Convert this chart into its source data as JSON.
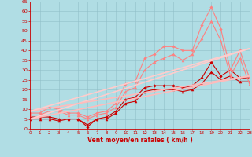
{
  "xlabel": "Vent moyen/en rafales ( km/h )",
  "xlim": [
    0,
    23
  ],
  "ylim": [
    0,
    65
  ],
  "yticks": [
    0,
    5,
    10,
    15,
    20,
    25,
    30,
    35,
    40,
    45,
    50,
    55,
    60,
    65
  ],
  "xticks": [
    0,
    1,
    2,
    3,
    4,
    5,
    6,
    7,
    8,
    9,
    10,
    11,
    12,
    13,
    14,
    15,
    16,
    17,
    18,
    19,
    20,
    21,
    22,
    23
  ],
  "bg_color": "#b0dde4",
  "grid_color": "#90bfc8",
  "lines": [
    {
      "x": [
        0,
        1,
        2,
        3,
        4,
        5,
        6,
        7,
        8,
        9,
        10,
        11,
        12,
        13,
        14,
        15,
        16,
        17,
        18,
        19,
        20,
        21,
        22,
        23
      ],
      "y": [
        6,
        6,
        6,
        5,
        5,
        5,
        1,
        5,
        6,
        9,
        15,
        16,
        21,
        22,
        22,
        22,
        21,
        22,
        26,
        34,
        27,
        30,
        26,
        26
      ],
      "color": "#cc0000",
      "marker": "D",
      "markersize": 1.8,
      "linewidth": 0.8
    },
    {
      "x": [
        0,
        1,
        2,
        3,
        4,
        5,
        6,
        7,
        8,
        9,
        10,
        11,
        12,
        13,
        14,
        15,
        16,
        17,
        18,
        19,
        20,
        21,
        22,
        23
      ],
      "y": [
        5,
        5,
        5,
        4,
        5,
        5,
        2,
        5,
        5,
        8,
        13,
        14,
        19,
        20,
        20,
        20,
        19,
        20,
        23,
        29,
        25,
        27,
        24,
        24
      ],
      "color": "#cc0000",
      "marker": "^",
      "markersize": 2.2,
      "linewidth": 0.8
    },
    {
      "x": [
        0,
        1,
        2,
        3,
        4,
        5,
        6,
        7,
        8,
        9,
        10,
        11,
        12,
        13,
        14,
        15,
        16,
        17,
        18,
        19,
        20,
        21,
        22,
        23
      ],
      "y": [
        8,
        8,
        11,
        10,
        8,
        8,
        6,
        8,
        9,
        13,
        23,
        24,
        36,
        38,
        42,
        42,
        40,
        40,
        53,
        62,
        51,
        30,
        40,
        26
      ],
      "color": "#ff8080",
      "marker": "D",
      "markersize": 1.8,
      "linewidth": 0.8
    },
    {
      "x": [
        0,
        1,
        2,
        3,
        4,
        5,
        6,
        7,
        8,
        9,
        10,
        11,
        12,
        13,
        14,
        15,
        16,
        17,
        18,
        19,
        20,
        21,
        22,
        23
      ],
      "y": [
        7,
        7,
        9,
        9,
        7,
        7,
        5,
        7,
        8,
        11,
        19,
        21,
        30,
        34,
        36,
        38,
        35,
        38,
        46,
        55,
        45,
        27,
        36,
        23
      ],
      "color": "#ff8080",
      "marker": "^",
      "markersize": 2.2,
      "linewidth": 0.8
    },
    {
      "x": [
        0,
        23
      ],
      "y": [
        5,
        27
      ],
      "color": "#ffbbbb",
      "marker": null,
      "markersize": 0,
      "linewidth": 1.2
    },
    {
      "x": [
        0,
        23
      ],
      "y": [
        5,
        41
      ],
      "color": "#ffcccc",
      "marker": null,
      "markersize": 0,
      "linewidth": 1.2
    },
    {
      "x": [
        0,
        23
      ],
      "y": [
        9,
        27
      ],
      "color": "#ffbbbb",
      "marker": null,
      "markersize": 0,
      "linewidth": 1.2
    },
    {
      "x": [
        0,
        23
      ],
      "y": [
        9,
        41
      ],
      "color": "#ffcccc",
      "marker": null,
      "markersize": 0,
      "linewidth": 1.2
    }
  ]
}
